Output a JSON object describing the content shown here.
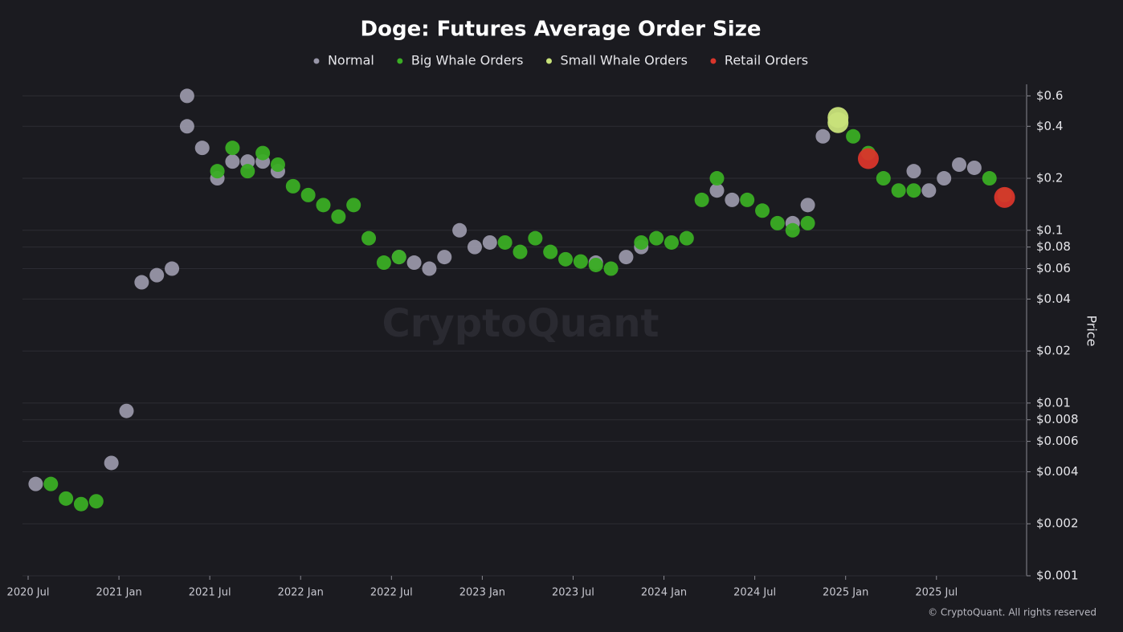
{
  "chart_data": {
    "type": "scatter",
    "title": "Doge: Futures Average Order Size",
    "y_label": "Price",
    "watermark": "CryptoQuant",
    "credit": "© CryptoQuant. All rights reserved",
    "log_y": true,
    "grid": true,
    "legend": "top",
    "xlim": [
      "2020-07",
      "2025-12"
    ],
    "xticks": [
      {
        "value": "2020-07",
        "label": "2020 Jul"
      },
      {
        "value": "2021-01",
        "label": "2021 Jan"
      },
      {
        "value": "2021-07",
        "label": "2021 Jul"
      },
      {
        "value": "2022-01",
        "label": "2022 Jan"
      },
      {
        "value": "2022-07",
        "label": "2022 Jul"
      },
      {
        "value": "2023-01",
        "label": "2023 Jan"
      },
      {
        "value": "2023-07",
        "label": "2023 Jul"
      },
      {
        "value": "2024-01",
        "label": "2024 Jan"
      },
      {
        "value": "2024-07",
        "label": "2024 Jul"
      },
      {
        "value": "2025-01",
        "label": "2025 Jan"
      },
      {
        "value": "2025-07",
        "label": "2025 Jul"
      }
    ],
    "ylim": [
      0.001,
      0.7
    ],
    "yticks": [
      {
        "value": 0.001,
        "label": "$0.001"
      },
      {
        "value": 0.002,
        "label": "$0.002"
      },
      {
        "value": 0.004,
        "label": "$0.004"
      },
      {
        "value": 0.006,
        "label": "$0.006"
      },
      {
        "value": 0.008,
        "label": "$0.008"
      },
      {
        "value": 0.01,
        "label": "$0.01"
      },
      {
        "value": 0.02,
        "label": "$0.02"
      },
      {
        "value": 0.04,
        "label": "$0.04"
      },
      {
        "value": 0.06,
        "label": "$0.06"
      },
      {
        "value": 0.08,
        "label": "$0.08"
      },
      {
        "value": 0.1,
        "label": "$0.1"
      },
      {
        "value": 0.2,
        "label": "$0.2"
      },
      {
        "value": 0.4,
        "label": "$0.4"
      },
      {
        "value": 0.6,
        "label": "$0.6"
      }
    ],
    "series": [
      {
        "name": "Normal",
        "color": "#9896a8",
        "x": [
          "2020-07",
          "2020-12",
          "2021-01",
          "2021-02",
          "2021-03",
          "2021-04",
          "2021-05",
          "2021-05",
          "2021-06",
          "2021-07",
          "2021-08",
          "2021-09",
          "2021-10",
          "2021-11",
          "2022-07",
          "2022-08",
          "2022-09",
          "2022-10",
          "2022-11",
          "2022-12",
          "2023-01",
          "2023-08",
          "2023-10",
          "2023-11",
          "2024-04",
          "2024-05",
          "2024-09",
          "2024-10",
          "2024-11",
          "2025-05",
          "2025-06",
          "2025-07",
          "2025-08",
          "2025-09"
        ],
        "values": [
          0.0034,
          0.0045,
          0.009,
          0.05,
          0.055,
          0.06,
          0.4,
          0.6,
          0.3,
          0.2,
          0.25,
          0.25,
          0.25,
          0.22,
          0.07,
          0.065,
          0.06,
          0.07,
          0.1,
          0.08,
          0.085,
          0.065,
          0.07,
          0.08,
          0.17,
          0.15,
          0.11,
          0.14,
          0.35,
          0.22,
          0.17,
          0.2,
          0.24,
          0.23
        ]
      },
      {
        "name": "Big Whale Orders",
        "color": "#3aad24",
        "x": [
          "2020-08",
          "2020-09",
          "2020-10",
          "2020-11",
          "2021-07",
          "2021-08",
          "2021-09",
          "2021-10",
          "2021-11",
          "2021-12",
          "2022-01",
          "2022-02",
          "2022-03",
          "2022-04",
          "2022-05",
          "2022-06",
          "2022-07",
          "2023-02",
          "2023-03",
          "2023-04",
          "2023-05",
          "2023-06",
          "2023-07",
          "2023-08",
          "2023-09",
          "2023-11",
          "2023-12",
          "2024-01",
          "2024-02",
          "2024-03",
          "2024-04",
          "2024-06",
          "2024-07",
          "2024-08",
          "2024-09",
          "2024-10",
          "2025-01",
          "2025-02",
          "2025-03",
          "2025-04",
          "2025-05",
          "2025-10",
          "2025-11"
        ],
        "values": [
          0.0034,
          0.0028,
          0.0026,
          0.0027,
          0.22,
          0.3,
          0.22,
          0.28,
          0.24,
          0.18,
          0.16,
          0.14,
          0.12,
          0.14,
          0.09,
          0.065,
          0.07,
          0.085,
          0.075,
          0.09,
          0.075,
          0.068,
          0.066,
          0.063,
          0.06,
          0.085,
          0.09,
          0.085,
          0.09,
          0.15,
          0.2,
          0.15,
          0.13,
          0.11,
          0.1,
          0.11,
          0.35,
          0.28,
          0.2,
          0.17,
          0.17,
          0.2,
          0.16
        ]
      },
      {
        "name": "Small Whale Orders",
        "color": "#c8e27a",
        "x": [
          "2024-12",
          "2024-12"
        ],
        "values": [
          0.45,
          0.42
        ]
      },
      {
        "name": "Retail Orders",
        "color": "#d9352b",
        "x": [
          "2025-02",
          "2025-11"
        ],
        "values": [
          0.26,
          0.155
        ]
      }
    ]
  }
}
